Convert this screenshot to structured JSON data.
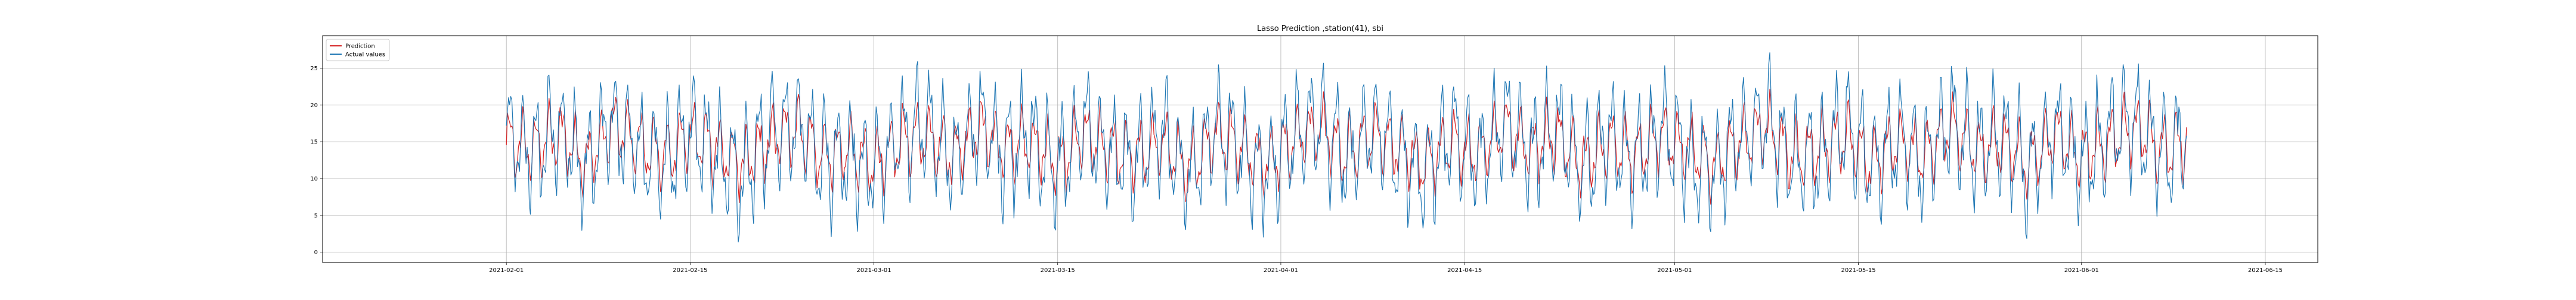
{
  "chart_data": {
    "type": "line",
    "title": "Lasso Prediction ,station(41), sbi",
    "xlabel": "",
    "ylabel": "",
    "x_range": [
      "2021-01-18",
      "2021-06-19"
    ],
    "x_data_range": [
      "2021-02-01",
      "2021-06-09"
    ],
    "ylim": [
      -1.4,
      29.4
    ],
    "grid": true,
    "legend_position": "upper-left",
    "x_ticks": [
      "2021-02-01",
      "2021-02-15",
      "2021-03-01",
      "2021-03-15",
      "2021-04-01",
      "2021-04-15",
      "2021-05-01",
      "2021-05-15",
      "2021-06-01",
      "2021-06-15"
    ],
    "y_ticks": [
      0,
      5,
      10,
      15,
      20,
      25
    ],
    "series": [
      {
        "name": "Prediction",
        "color": "#d62728",
        "x": [
          "2021-02-01",
          "2021-02-03",
          "2021-02-05",
          "2021-02-07",
          "2021-02-09",
          "2021-02-11",
          "2021-02-13",
          "2021-02-15",
          "2021-02-17",
          "2021-02-19",
          "2021-02-21",
          "2021-02-23",
          "2021-02-25",
          "2021-02-27",
          "2021-03-01",
          "2021-03-03",
          "2021-03-05",
          "2021-03-07",
          "2021-03-09",
          "2021-03-11",
          "2021-03-13",
          "2021-03-15",
          "2021-03-17",
          "2021-03-19",
          "2021-03-21",
          "2021-03-23",
          "2021-03-25",
          "2021-03-27",
          "2021-03-29",
          "2021-03-31",
          "2021-04-02",
          "2021-04-04",
          "2021-04-06",
          "2021-04-08",
          "2021-04-10",
          "2021-04-12",
          "2021-04-14",
          "2021-04-16",
          "2021-04-18",
          "2021-04-20",
          "2021-04-22",
          "2021-04-24",
          "2021-04-26",
          "2021-04-28",
          "2021-04-30",
          "2021-05-02",
          "2021-05-04",
          "2021-05-06",
          "2021-05-08",
          "2021-05-10",
          "2021-05-12",
          "2021-05-14",
          "2021-05-16",
          "2021-05-18",
          "2021-05-20",
          "2021-05-22",
          "2021-05-24",
          "2021-05-26",
          "2021-05-28",
          "2021-05-30",
          "2021-06-01",
          "2021-06-03",
          "2021-06-05",
          "2021-06-07",
          "2021-06-09"
        ],
        "values": [
          15,
          14,
          16,
          12,
          17,
          15,
          13,
          16,
          14,
          12,
          15,
          17,
          13,
          14,
          12,
          15,
          16,
          13,
          17,
          14,
          15,
          12,
          16,
          14,
          13,
          15,
          11,
          16,
          14,
          12,
          15,
          17,
          13,
          16,
          14,
          12,
          15,
          13,
          17,
          14,
          16,
          12,
          15,
          13,
          16,
          14,
          12,
          15,
          17,
          13,
          14,
          16,
          12,
          15,
          13,
          17,
          14,
          15,
          12,
          16,
          13,
          15,
          17,
          14,
          15
        ]
      },
      {
        "name": "Actual values",
        "color": "#1f77b4",
        "x": [
          "2021-02-01",
          "2021-02-03",
          "2021-02-05",
          "2021-02-07",
          "2021-02-09",
          "2021-02-11",
          "2021-02-13",
          "2021-02-15",
          "2021-02-17",
          "2021-02-19",
          "2021-02-21",
          "2021-02-23",
          "2021-02-25",
          "2021-02-27",
          "2021-03-01",
          "2021-03-03",
          "2021-03-05",
          "2021-03-07",
          "2021-03-09",
          "2021-03-11",
          "2021-03-13",
          "2021-03-15",
          "2021-03-17",
          "2021-03-19",
          "2021-03-21",
          "2021-03-23",
          "2021-03-25",
          "2021-03-27",
          "2021-03-29",
          "2021-03-31",
          "2021-04-02",
          "2021-04-04",
          "2021-04-06",
          "2021-04-08",
          "2021-04-10",
          "2021-04-12",
          "2021-04-14",
          "2021-04-16",
          "2021-04-18",
          "2021-04-20",
          "2021-04-22",
          "2021-04-24",
          "2021-04-26",
          "2021-04-28",
          "2021-04-30",
          "2021-05-02",
          "2021-05-04",
          "2021-05-06",
          "2021-05-08",
          "2021-05-10",
          "2021-05-12",
          "2021-05-14",
          "2021-05-16",
          "2021-05-18",
          "2021-05-20",
          "2021-05-22",
          "2021-05-24",
          "2021-05-26",
          "2021-05-28",
          "2021-05-30",
          "2021-06-01",
          "2021-06-03",
          "2021-06-05",
          "2021-06-07",
          "2021-06-09"
        ],
        "values": [
          16,
          13,
          17,
          11,
          18,
          14,
          12,
          17,
          13,
          10,
          16,
          18,
          12,
          13,
          11,
          16,
          17,
          12,
          18,
          13,
          16,
          11,
          17,
          13,
          12,
          16,
          10,
          17,
          13,
          11,
          16,
          18,
          12,
          17,
          13,
          11,
          16,
          12,
          18,
          13,
          17,
          11,
          16,
          12,
          17,
          13,
          11,
          16,
          18,
          12,
          13,
          17,
          11,
          16,
          12,
          18,
          13,
          16,
          11,
          17,
          12,
          16,
          18,
          13,
          16
        ]
      }
    ]
  }
}
